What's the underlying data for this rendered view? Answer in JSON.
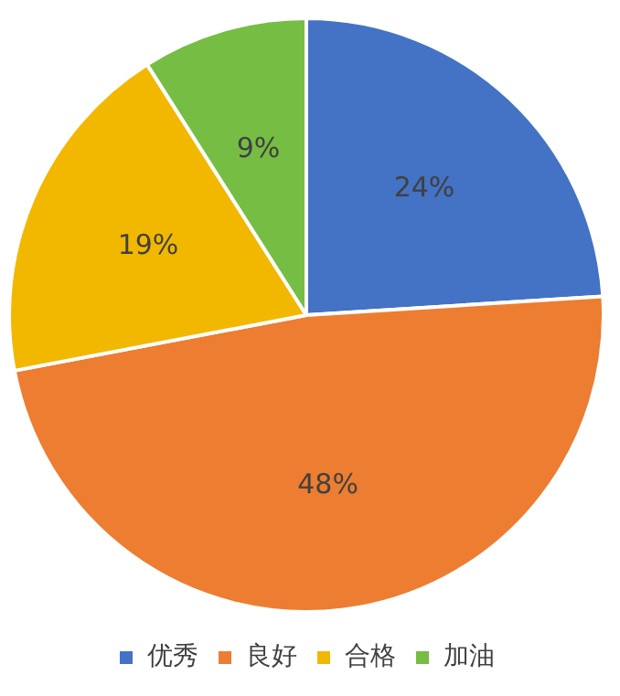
{
  "chart_data": {
    "type": "pie",
    "categories": [
      "优秀",
      "良好",
      "合格",
      "加油"
    ],
    "values": [
      24,
      48,
      19,
      9
    ],
    "colors": [
      "#4472c4",
      "#ed7d31",
      "#f2b800",
      "#76bd43"
    ],
    "value_labels": [
      "24%",
      "48%",
      "19%",
      "9%"
    ],
    "legend": "bottom"
  }
}
